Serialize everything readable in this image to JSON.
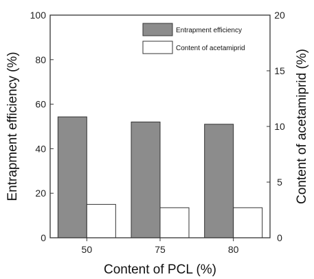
{
  "chart_data": {
    "type": "bar",
    "categories": [
      "50",
      "75",
      "80"
    ],
    "series": [
      {
        "name": "Entrapment efficiency",
        "axis": "left",
        "values": [
          54.3,
          52.0,
          51.0
        ],
        "color": "#8c8c8c"
      },
      {
        "name": "Content of acetamiprid",
        "axis": "right",
        "values": [
          3.0,
          2.7,
          2.7
        ],
        "color": "#ffffff"
      }
    ],
    "xlabel": "Content of PCL (%)",
    "ylabel": "Entrapment efficiency (%)",
    "y2label": "Content of acetamiprid (%)",
    "ylim": [
      0,
      100
    ],
    "y2lim": [
      0,
      20
    ],
    "yticks": [
      "0",
      "20",
      "40",
      "60",
      "80",
      "100"
    ],
    "y2ticks": [
      "0",
      "5",
      "10",
      "15",
      "20"
    ],
    "grid": false,
    "legend_position": "top-right"
  }
}
